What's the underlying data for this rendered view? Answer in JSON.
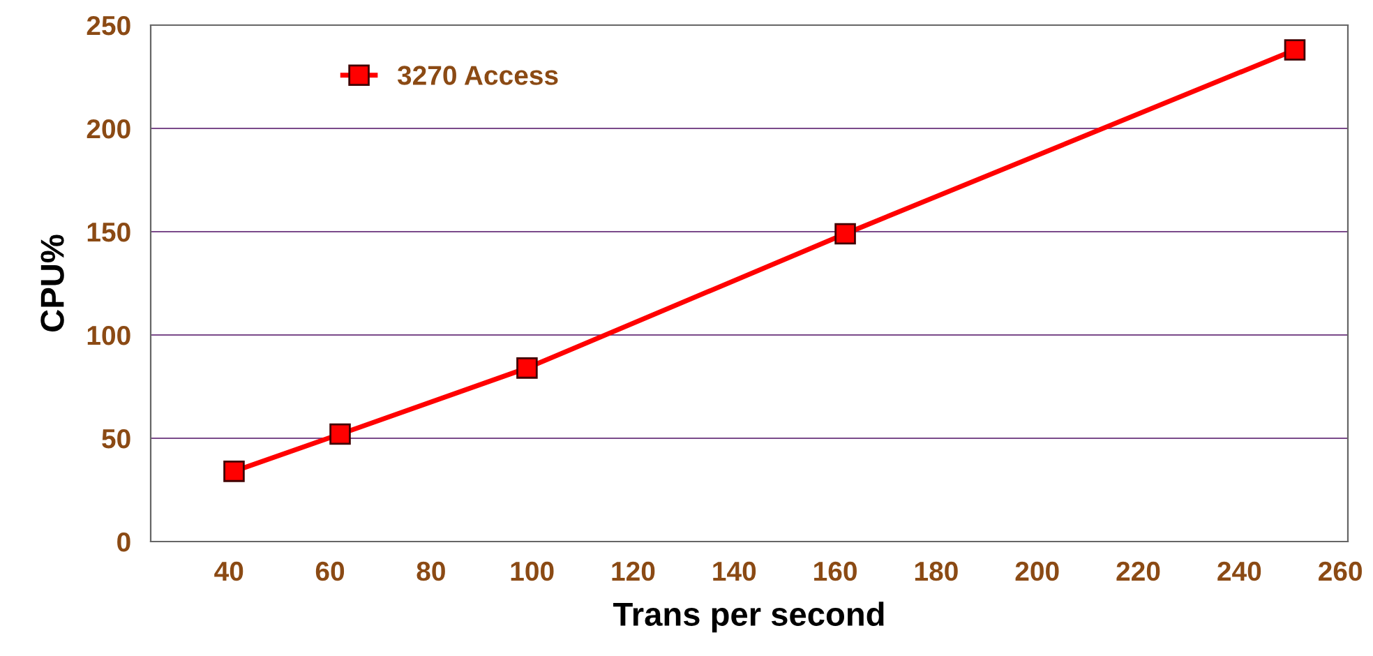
{
  "chart_data": {
    "type": "line",
    "xlabel": "Trans per second",
    "ylabel": "CPU%",
    "series": [
      {
        "name": "3270 Access",
        "color": "#ff0000",
        "x": [
          41,
          62,
          99,
          162,
          251
        ],
        "values": [
          34,
          52,
          84,
          149,
          238
        ]
      }
    ],
    "xlim": [
      24.5,
      261.5
    ],
    "xticks": [
      40,
      60,
      80,
      100,
      120,
      140,
      160,
      180,
      200,
      220,
      240,
      260
    ],
    "ylim": [
      0,
      250
    ],
    "yticks": [
      0,
      50,
      100,
      150,
      200,
      250
    ],
    "grid": "y",
    "legend": "top left",
    "marker": "square",
    "line_style": "solid"
  }
}
